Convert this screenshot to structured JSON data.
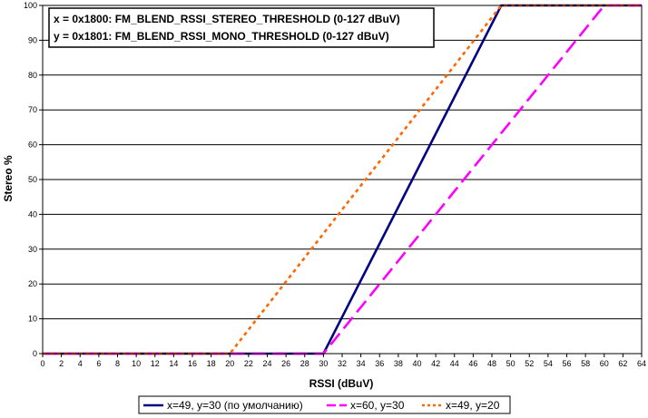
{
  "chart_data": {
    "type": "line",
    "title": "",
    "xlabel": "RSSI (dBuV)",
    "ylabel": "Stereo %",
    "xlim": [
      0,
      64
    ],
    "ylim": [
      0,
      100
    ],
    "x_ticks": [
      0,
      2,
      4,
      6,
      8,
      10,
      12,
      14,
      16,
      18,
      20,
      22,
      24,
      26,
      28,
      30,
      32,
      34,
      36,
      38,
      40,
      42,
      44,
      46,
      48,
      50,
      52,
      54,
      56,
      58,
      60,
      62,
      64
    ],
    "y_ticks": [
      0,
      10,
      20,
      30,
      40,
      50,
      60,
      70,
      80,
      90,
      100
    ],
    "grid": {
      "horizontal": true,
      "vertical": false
    },
    "annotation": [
      "x = 0x1800: FM_BLEND_RSSI_STEREO_THRESHOLD (0-127 dBuV)",
      "y = 0x1801: FM_BLEND_RSSI_MONO_THRESHOLD (0-127 dBuV)"
    ],
    "legend_position": "bottom",
    "series": [
      {
        "name": "x=49, y=30 (по умолчанию)",
        "color": "#000080",
        "style": "solid",
        "x": [
          0,
          30,
          49,
          64
        ],
        "y": [
          0,
          0,
          100,
          100
        ]
      },
      {
        "name": "x=60, y=30",
        "color": "#ff00ff",
        "style": "dashed",
        "x": [
          0,
          30,
          60,
          64
        ],
        "y": [
          0,
          0,
          100,
          100
        ]
      },
      {
        "name": "x=49, y=20",
        "color": "#ff6600",
        "style": "dotted",
        "x": [
          0,
          20,
          49,
          64
        ],
        "y": [
          0,
          0,
          100,
          100
        ]
      }
    ]
  }
}
